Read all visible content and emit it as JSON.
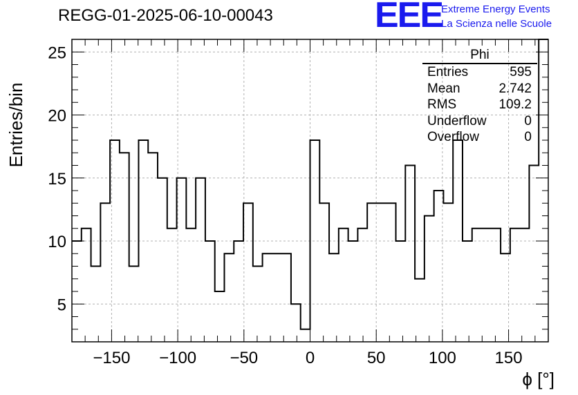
{
  "title": "REGG-01-2025-06-10-00043",
  "logo": {
    "mark": "EEE",
    "line1": "Extreme Energy Events",
    "line2": "La Scienza nelle Scuole",
    "color": "#1a1aee"
  },
  "stats": {
    "name": "Phi",
    "rows": [
      {
        "label": "Entries",
        "value": "595"
      },
      {
        "label": "Mean",
        "value": "2.742"
      },
      {
        "label": "RMS",
        "value": "109.2"
      },
      {
        "label": "Underflow",
        "value": "0"
      },
      {
        "label": "Overflow",
        "value": "0"
      }
    ]
  },
  "chart_data": {
    "type": "histogram",
    "title": "REGG-01-2025-06-10-00043",
    "xlabel": "ϕ [°]",
    "ylabel": "Entries/bin",
    "xlim": [
      -180,
      180
    ],
    "ylim": [
      2,
      26
    ],
    "bin_width": 7.2,
    "x_ticks": [
      "−150",
      "−100",
      "−50",
      "0",
      "50",
      "100",
      "150"
    ],
    "x_tick_values": [
      -150,
      -100,
      -50,
      0,
      50,
      100,
      150
    ],
    "y_ticks": [
      "5",
      "10",
      "15",
      "20",
      "25"
    ],
    "y_tick_values": [
      5,
      10,
      15,
      20,
      25
    ],
    "grid": true,
    "legend": "top-right stats box",
    "bin_edges_start": -180,
    "values": [
      10,
      11,
      8,
      13,
      18,
      17,
      8,
      18,
      17,
      15,
      11,
      15,
      11,
      15,
      10,
      6,
      9,
      10,
      13,
      8,
      9,
      9,
      9,
      5,
      3,
      18,
      13,
      9,
      11,
      10,
      11,
      13,
      13,
      13,
      10,
      16,
      7,
      12,
      14,
      13,
      18,
      10,
      11,
      11,
      11,
      9,
      11,
      11,
      16,
      26
    ]
  }
}
